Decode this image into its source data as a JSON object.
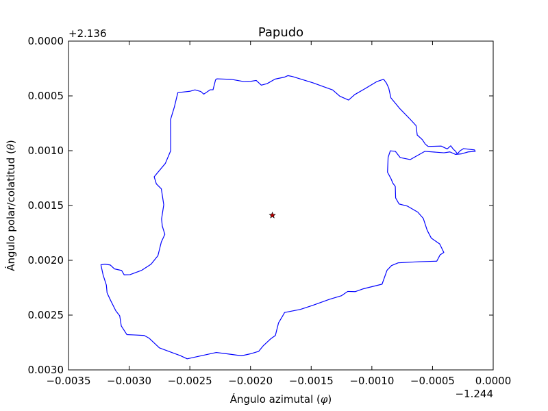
{
  "chart_data": {
    "type": "line",
    "title": "Papudo",
    "xlabel": "Ángulo azimutal (",
    "xlabel_symbol": "φ",
    "xlabel_close": ")",
    "ylabel": "Ángulo polar/colatitud (",
    "ylabel_symbol": "θ",
    "ylabel_close": ")",
    "x_offset_label": "−1.244",
    "y_offset_label": "+2.136",
    "xlim": [
      -0.0035,
      0.0
    ],
    "ylim": [
      0.0,
      0.003
    ],
    "y_inverted": true,
    "grid": false,
    "x_ticks": [
      {
        "value": -0.0035,
        "label": "−0.0035"
      },
      {
        "value": -0.003,
        "label": "−0.0030"
      },
      {
        "value": -0.0025,
        "label": "−0.0025"
      },
      {
        "value": -0.002,
        "label": "−0.0020"
      },
      {
        "value": -0.0015,
        "label": "−0.0015"
      },
      {
        "value": -0.001,
        "label": "−0.0010"
      },
      {
        "value": -0.0005,
        "label": "−0.0005"
      },
      {
        "value": 0.0,
        "label": "0.0000"
      }
    ],
    "y_ticks": [
      {
        "value": 0.0,
        "label": "0.0000"
      },
      {
        "value": 0.0005,
        "label": "0.0005"
      },
      {
        "value": 0.001,
        "label": "0.0010"
      },
      {
        "value": 0.0015,
        "label": "0.0015"
      },
      {
        "value": 0.002,
        "label": "0.0020"
      },
      {
        "value": 0.0025,
        "label": "0.0025"
      },
      {
        "value": 0.003,
        "label": "0.0030"
      }
    ],
    "series": [
      {
        "kind": "boundary",
        "color": "#0000ff",
        "points": [
          [
            -0.0025,
            0.000458
          ],
          [
            -0.002458,
            0.000445
          ],
          [
            -0.00241,
            0.00046
          ],
          [
            -0.002385,
            0.000484
          ],
          [
            -0.002332,
            0.000444
          ],
          [
            -0.002309,
            0.000444
          ],
          [
            -0.002288,
            0.000353
          ],
          [
            -0.002277,
            0.000344
          ],
          [
            -0.002159,
            0.000349
          ],
          [
            -0.002056,
            0.000369
          ],
          [
            -0.001999,
            0.000367
          ],
          [
            -0.001953,
            0.000359
          ],
          [
            -0.001911,
            0.000402
          ],
          [
            -0.001863,
            0.000388
          ],
          [
            -0.001798,
            0.000347
          ],
          [
            -0.001718,
            0.000328
          ],
          [
            -0.001692,
            0.000315
          ],
          [
            -0.001655,
            0.000323
          ],
          [
            -0.001485,
            0.000381
          ],
          [
            -0.001323,
            0.000446
          ],
          [
            -0.001264,
            0.000503
          ],
          [
            -0.001192,
            0.000538
          ],
          [
            -0.001141,
            0.000488
          ],
          [
            -0.001052,
            0.000431
          ],
          [
            -0.000958,
            0.000369
          ],
          [
            -0.000903,
            0.000348
          ],
          [
            -0.00088,
            0.000383
          ],
          [
            -0.000861,
            0.000428
          ],
          [
            -0.000843,
            0.000518
          ],
          [
            -0.000773,
            0.000612
          ],
          [
            -0.000686,
            0.000711
          ],
          [
            -0.000636,
            0.000771
          ],
          [
            -0.000626,
            0.000857
          ],
          [
            -0.000585,
            0.000898
          ],
          [
            -0.000559,
            0.000941
          ],
          [
            -0.000536,
            0.000961
          ],
          [
            -0.000428,
            0.000958
          ],
          [
            -0.000379,
            0.000984
          ],
          [
            -0.00035,
            0.000955
          ],
          [
            -0.000329,
            0.000986
          ],
          [
            -0.000309,
            0.001006
          ],
          [
            -0.000297,
            0.001031
          ],
          [
            -0.000273,
            0.001001
          ],
          [
            -0.000245,
            0.000981
          ],
          [
            -0.000154,
            0.000993
          ],
          [
            -0.000148,
            0.001006
          ],
          [
            -0.000206,
            0.001011
          ],
          [
            -0.000263,
            0.001029
          ],
          [
            -0.00031,
            0.001034
          ],
          [
            -0.000357,
            0.001011
          ],
          [
            -0.000406,
            0.001019
          ],
          [
            -0.000564,
            0.001006
          ],
          [
            -0.000684,
            0.001081
          ],
          [
            -0.000766,
            0.001063
          ],
          [
            -0.000806,
            0.001006
          ],
          [
            -0.000848,
            0.001001
          ],
          [
            -0.000866,
            0.001061
          ],
          [
            -0.000871,
            0.001196
          ],
          [
            -0.000842,
            0.001256
          ],
          [
            -0.000827,
            0.001296
          ],
          [
            -0.000807,
            0.001326
          ],
          [
            -0.000804,
            0.001431
          ],
          [
            -0.000776,
            0.001486
          ],
          [
            -0.000706,
            0.001506
          ],
          [
            -0.000621,
            0.001561
          ],
          [
            -0.000576,
            0.001618
          ],
          [
            -0.000544,
            0.001726
          ],
          [
            -0.00051,
            0.001798
          ],
          [
            -0.000441,
            0.001851
          ],
          [
            -0.000407,
            0.001928
          ],
          [
            -0.000438,
            0.001951
          ],
          [
            -0.000465,
            0.002008
          ],
          [
            -0.000609,
            0.002013
          ],
          [
            -0.000783,
            0.002023
          ],
          [
            -0.000838,
            0.002048
          ],
          [
            -0.000875,
            0.002091
          ],
          [
            -0.000916,
            0.002218
          ],
          [
            -0.001074,
            0.002261
          ],
          [
            -0.001138,
            0.002286
          ],
          [
            -0.001199,
            0.002284
          ],
          [
            -0.00125,
            0.002323
          ],
          [
            -0.001349,
            0.002356
          ],
          [
            -0.001488,
            0.002411
          ],
          [
            -0.001589,
            0.002448
          ],
          [
            -0.001719,
            0.002476
          ],
          [
            -0.001742,
            0.002521
          ],
          [
            -0.001769,
            0.002571
          ],
          [
            -0.001785,
            0.002641
          ],
          [
            -0.001795,
            0.002686
          ],
          [
            -0.001831,
            0.002714
          ],
          [
            -0.001896,
            0.002781
          ],
          [
            -0.001933,
            0.002831
          ],
          [
            -0.002004,
            0.002854
          ],
          [
            -0.002074,
            0.002871
          ],
          [
            -0.002189,
            0.002854
          ],
          [
            -0.002282,
            0.002841
          ],
          [
            -0.002386,
            0.002866
          ],
          [
            -0.002522,
            0.002899
          ],
          [
            -0.00258,
            0.002869
          ],
          [
            -0.002666,
            0.002834
          ],
          [
            -0.002751,
            0.002799
          ],
          [
            -0.002835,
            0.002711
          ],
          [
            -0.002876,
            0.002686
          ],
          [
            -0.002961,
            0.002681
          ],
          [
            -0.003019,
            0.002678
          ],
          [
            -0.003065,
            0.002599
          ],
          [
            -0.003078,
            0.002506
          ],
          [
            -0.00311,
            0.002461
          ],
          [
            -0.003153,
            0.002366
          ],
          [
            -0.003182,
            0.002298
          ],
          [
            -0.003188,
            0.002226
          ],
          [
            -0.003215,
            0.002133
          ],
          [
            -0.003233,
            0.002041
          ],
          [
            -0.003199,
            0.002035
          ],
          [
            -0.003155,
            0.002043
          ],
          [
            -0.003122,
            0.002078
          ],
          [
            -0.003062,
            0.002093
          ],
          [
            -0.003041,
            0.002133
          ],
          [
            -0.002993,
            0.002131
          ],
          [
            -0.002896,
            0.002091
          ],
          [
            -0.00282,
            0.002036
          ],
          [
            -0.002763,
            0.001958
          ],
          [
            -0.002735,
            0.001833
          ],
          [
            -0.002706,
            0.001763
          ],
          [
            -0.002727,
            0.001688
          ],
          [
            -0.002733,
            0.001623
          ],
          [
            -0.002715,
            0.001493
          ],
          [
            -0.002735,
            0.001348
          ],
          [
            -0.002776,
            0.001303
          ],
          [
            -0.002794,
            0.001238
          ],
          [
            -0.002702,
            0.001116
          ],
          [
            -0.002658,
            0.001001
          ],
          [
            -0.002658,
            0.000873
          ],
          [
            -0.002659,
            0.000716
          ],
          [
            -0.002628,
            0.000603
          ],
          [
            -0.002599,
            0.00047
          ],
          [
            -0.0025,
            0.000458
          ]
        ]
      },
      {
        "kind": "marker",
        "name": "",
        "marker": "star",
        "color": "#c00000",
        "points": [
          [
            -0.00182,
            0.00159
          ]
        ]
      }
    ]
  }
}
